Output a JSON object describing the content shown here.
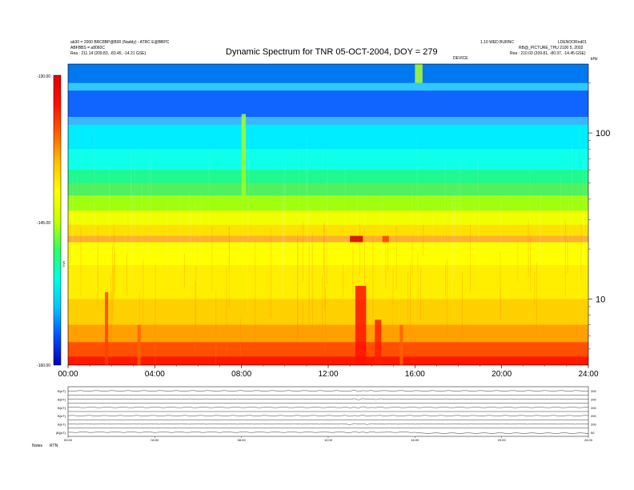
{
  "header": {
    "title": "Dynamic Spectrum for TNR 05-OCT-2004, DOY = 279",
    "left_line1": "ab30 = 2000 BRC8BP@B00 (Naddy) - ATRC E@BBPC",
    "left_line2": "ABFBBS = a8060C",
    "left_line3": "Rea : 211.14 (209.83, -83.45, -14.21 GSE)",
    "right_line1": "1.10 WED BURNC",
    "right_line1b": "LDENOORnd01",
    "right_line2": "RB@_PICTURE_THU 2100 5, 2002",
    "right_line3": "Rea : 210.03 (209.81, -80.37, -14.45 GSE)",
    "center_tag": "DEVICE",
    "kHz_label": "kHz"
  },
  "chart_data": {
    "type": "heatmap",
    "title": "Dynamic Spectrum for TNR 05-OCT-2004, DOY = 279",
    "x_ticks": [
      "00:00",
      "04:00",
      "08:00",
      "12:00",
      "16:00",
      "20:00",
      "24:00"
    ],
    "x_range_hours": [
      0,
      24
    ],
    "y_scale": "log",
    "y_unit": "kHz",
    "y_ticks": [
      {
        "label": "100",
        "value": 100
      },
      {
        "label": "10",
        "value": 10
      }
    ],
    "y_range_khz": [
      4,
      260
    ],
    "colorbar": {
      "label": "TNR",
      "ticks": [
        "-130.00",
        "-145.00",
        "-160.00"
      ],
      "range": [
        -160,
        -130
      ],
      "colors": [
        "#0000b4",
        "#0050ff",
        "#00c8ff",
        "#00ffe0",
        "#30ff60",
        "#c8ff00",
        "#ffff00",
        "#ffc000",
        "#ff6000",
        "#ff1000",
        "#e00000"
      ]
    },
    "bands": [
      {
        "from_khz": 200,
        "to_khz": 260,
        "color": "#0078f0"
      },
      {
        "from_khz": 180,
        "to_khz": 200,
        "color": "#30c8ff"
      },
      {
        "from_khz": 125,
        "to_khz": 180,
        "color": "#1064ff"
      },
      {
        "from_khz": 112,
        "to_khz": 125,
        "color": "#38b8ff"
      },
      {
        "from_khz": 80,
        "to_khz": 112,
        "color": "#00ecff"
      },
      {
        "from_khz": 60,
        "to_khz": 80,
        "color": "#10ffe8"
      },
      {
        "from_khz": 50,
        "to_khz": 60,
        "color": "#20f890"
      },
      {
        "from_khz": 42,
        "to_khz": 50,
        "color": "#50f060"
      },
      {
        "from_khz": 34,
        "to_khz": 42,
        "color": "#a0ff10"
      },
      {
        "from_khz": 28,
        "to_khz": 34,
        "color": "#f0ff00"
      },
      {
        "from_khz": 24,
        "to_khz": 28,
        "color": "#ffe000"
      },
      {
        "from_khz": 22,
        "to_khz": 24,
        "color": "#ffb030"
      },
      {
        "from_khz": 16,
        "to_khz": 22,
        "color": "#ffff00"
      },
      {
        "from_khz": 10,
        "to_khz": 16,
        "color": "#ffee00"
      },
      {
        "from_khz": 7,
        "to_khz": 10,
        "color": "#ffd000"
      },
      {
        "from_khz": 5.5,
        "to_khz": 7,
        "color": "#ffa000"
      },
      {
        "from_khz": 4.5,
        "to_khz": 5.5,
        "color": "#ff5000"
      },
      {
        "from_khz": 4,
        "to_khz": 4.5,
        "color": "#ff1800"
      }
    ],
    "bursts": [
      {
        "t_start": 13.25,
        "t_end": 13.75,
        "f_low": 4,
        "f_high": 12,
        "color": "#ff1000"
      },
      {
        "t_start": 14.15,
        "t_end": 14.45,
        "f_low": 4,
        "f_high": 7.5,
        "color": "#ff2000"
      },
      {
        "t_start": 1.7,
        "t_end": 1.85,
        "f_low": 4,
        "f_high": 11,
        "color": "#ff4000"
      },
      {
        "t_start": 3.2,
        "t_end": 3.35,
        "f_low": 4,
        "f_high": 7,
        "color": "#ff6000"
      },
      {
        "t_start": 15.3,
        "t_end": 15.45,
        "f_low": 4,
        "f_high": 7,
        "color": "#ff6000"
      },
      {
        "t_start": 13.0,
        "t_end": 13.6,
        "f_low": 22,
        "f_high": 24,
        "color": "#d00000"
      },
      {
        "t_start": 14.5,
        "t_end": 14.8,
        "f_low": 22,
        "f_high": 24,
        "color": "#ff4000"
      },
      {
        "t_start": 8.0,
        "t_end": 8.2,
        "f_low": 40,
        "f_high": 130,
        "color": "#a0ff20"
      },
      {
        "t_start": 16.0,
        "t_end": 16.35,
        "f_low": 200,
        "f_high": 260,
        "color": "#b0ff30"
      }
    ]
  },
  "panel": {
    "row_labels": [
      "B(nT)",
      "B(nT)",
      "B(nT)",
      "B(nT)",
      "B(nT)",
      "|B|(nT)"
    ],
    "time_ticks": [
      "00:00",
      "04:00",
      "08:00",
      "12:00",
      "16:00",
      "20:00",
      "24:00"
    ],
    "right_values": [
      "200",
      "200",
      "200",
      "200",
      "200",
      "50"
    ],
    "footer_left": "Notes",
    "footer_right": "RTN"
  }
}
